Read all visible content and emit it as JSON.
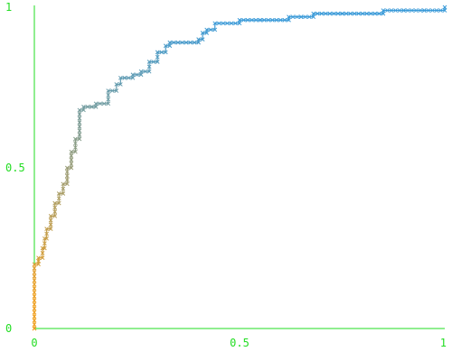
{
  "chart_data": {
    "type": "line",
    "title": "",
    "xlabel": "",
    "ylabel": "",
    "xlim": [
      0,
      1
    ],
    "ylim": [
      0,
      1
    ],
    "grid": false,
    "legend": "none",
    "marker": "x",
    "colors": {
      "axis": "#22dd22",
      "tick_text": "#22dd22",
      "low": "#f0a020",
      "high": "#3a9ad8"
    },
    "x_ticks": [
      {
        "value": 0,
        "label": "0"
      },
      {
        "value": 0.5,
        "label": "0.5"
      },
      {
        "value": 1,
        "label": "1"
      }
    ],
    "y_ticks": [
      {
        "value": 0,
        "label": "0"
      },
      {
        "value": 0.5,
        "label": "0.5"
      },
      {
        "value": 1,
        "label": "1"
      }
    ],
    "series": [
      {
        "x": [
          0,
          0,
          0.01,
          0.01,
          0.02,
          0.025,
          0.03,
          0.04,
          0.05,
          0.06,
          0.07,
          0.08,
          0.09,
          0.1,
          0.11,
          0.12,
          0.14,
          0.15,
          0.18,
          0.2,
          0.21,
          0.22,
          0.24,
          0.26,
          0.28,
          0.3,
          0.32,
          0.33,
          0.4,
          0.41,
          0.42,
          0.44,
          0.5,
          0.55,
          0.62,
          0.65,
          0.68,
          0.75,
          0.85,
          0.9,
          0.95,
          1
        ],
        "y": [
          0,
          0.2,
          0.21,
          0.22,
          0.25,
          0.28,
          0.31,
          0.35,
          0.39,
          0.42,
          0.45,
          0.5,
          0.55,
          0.59,
          0.68,
          0.69,
          0.69,
          0.7,
          0.74,
          0.76,
          0.78,
          0.78,
          0.79,
          0.8,
          0.83,
          0.86,
          0.88,
          0.89,
          0.9,
          0.92,
          0.93,
          0.95,
          0.96,
          0.96,
          0.97,
          0.97,
          0.98,
          0.98,
          0.99,
          0.99,
          0.99,
          1
        ]
      }
    ]
  }
}
